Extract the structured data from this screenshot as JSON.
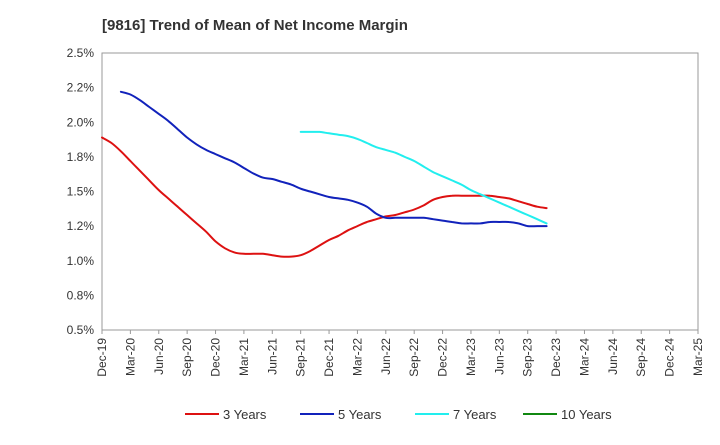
{
  "chart_data": {
    "type": "line",
    "title": "[9816]  Trend of Mean of Net Income Margin",
    "xlabel": "",
    "ylabel": "",
    "x_ticks": [
      "Dec-19",
      "Mar-20",
      "Jun-20",
      "Sep-20",
      "Dec-20",
      "Mar-21",
      "Jun-21",
      "Sep-21",
      "Dec-21",
      "Mar-22",
      "Jun-22",
      "Sep-22",
      "Dec-22",
      "Mar-23",
      "Jun-23",
      "Sep-23",
      "Dec-23",
      "Mar-24",
      "Jun-24",
      "Sep-24",
      "Dec-24",
      "Mar-25"
    ],
    "y_ticks": [
      "0.5%",
      "0.8%",
      "1.0%",
      "1.2%",
      "1.5%",
      "1.8%",
      "2.0%",
      "2.2%",
      "2.5%"
    ],
    "ylim": [
      0.5,
      2.5
    ],
    "grid": true,
    "legend_position": "bottom",
    "series": [
      {
        "name": "3 Years",
        "color": "#dd1111",
        "values": [
          1.89,
          1.85,
          1.79,
          1.72,
          1.65,
          1.58,
          1.51,
          1.45,
          1.39,
          1.33,
          1.27,
          1.21,
          1.14,
          1.09,
          1.06,
          1.05,
          1.05,
          1.05,
          1.04,
          1.03,
          1.03,
          1.04,
          1.07,
          1.11,
          1.15,
          1.18,
          1.22,
          1.25,
          1.28,
          1.3,
          1.32,
          1.33,
          1.35,
          1.37,
          1.4,
          1.44,
          1.46,
          1.47,
          1.47,
          1.47,
          1.47,
          1.47,
          1.46,
          1.45,
          1.43,
          1.41,
          1.39,
          1.38
        ]
      },
      {
        "name": "5 Years",
        "color": "#1122bb",
        "values": [
          null,
          null,
          2.22,
          2.2,
          2.16,
          2.11,
          2.06,
          2.01,
          1.95,
          1.89,
          1.84,
          1.8,
          1.77,
          1.74,
          1.71,
          1.67,
          1.63,
          1.6,
          1.59,
          1.57,
          1.55,
          1.52,
          1.5,
          1.48,
          1.46,
          1.45,
          1.44,
          1.42,
          1.39,
          1.34,
          1.31,
          1.31,
          1.31,
          1.31,
          1.31,
          1.3,
          1.29,
          1.28,
          1.27,
          1.27,
          1.27,
          1.28,
          1.28,
          1.28,
          1.27,
          1.25,
          1.25,
          1.25
        ]
      },
      {
        "name": "7 Years",
        "color": "#22eeee",
        "values": [
          null,
          null,
          null,
          null,
          null,
          null,
          null,
          null,
          null,
          null,
          null,
          null,
          null,
          null,
          null,
          null,
          null,
          null,
          null,
          null,
          null,
          1.93,
          1.93,
          1.93,
          1.92,
          1.91,
          1.9,
          1.88,
          1.85,
          1.82,
          1.8,
          1.78,
          1.75,
          1.72,
          1.68,
          1.64,
          1.61,
          1.58,
          1.55,
          1.51,
          1.48,
          1.45,
          1.42,
          1.39,
          1.36,
          1.33,
          1.3,
          1.27
        ]
      },
      {
        "name": "10 Years",
        "color": "#118811",
        "values": []
      }
    ]
  }
}
